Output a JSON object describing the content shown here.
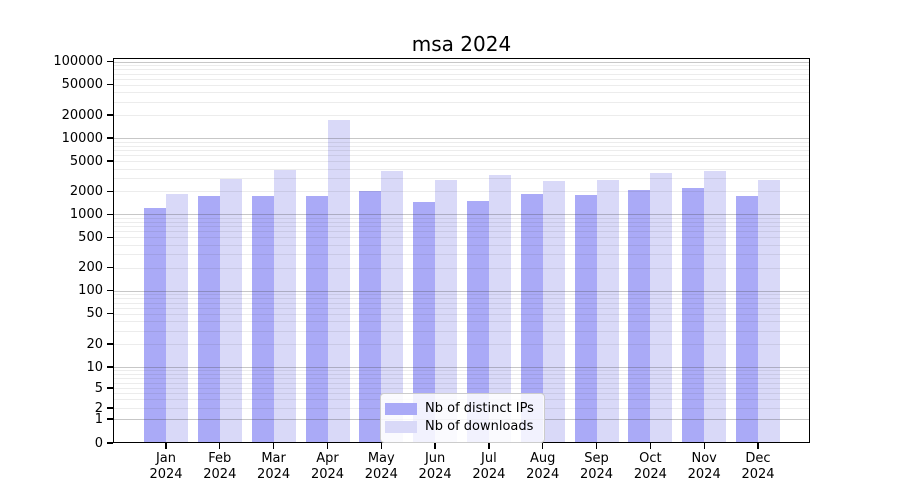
{
  "chart_data": {
    "type": "bar",
    "title": "msa 2024",
    "categories": [
      "Jan",
      "Feb",
      "Mar",
      "Apr",
      "May",
      "Jun",
      "Jul",
      "Aug",
      "Sep",
      "Oct",
      "Nov",
      "Dec"
    ],
    "year_label": "2024",
    "series": [
      {
        "name": "Nb of distinct IPs",
        "color": "#aaaaf7",
        "values": [
          1230,
          1770,
          1720,
          1770,
          2060,
          1440,
          1520,
          1850,
          1820,
          2120,
          2250,
          1720
        ]
      },
      {
        "name": "Nb of downloads",
        "color": "#d9d9f8",
        "values": [
          1830,
          2910,
          3880,
          17450,
          3760,
          2870,
          3330,
          2740,
          2870,
          3540,
          3760,
          2870
        ]
      }
    ],
    "yscale": "symlog",
    "yticks": [
      0,
      1,
      2,
      5,
      10,
      20,
      50,
      100,
      200,
      500,
      1000,
      2000,
      5000,
      10000,
      20000,
      50000,
      100000
    ],
    "ylim": [
      0,
      100000
    ],
    "xlabel": "",
    "ylabel": "",
    "grid": "on",
    "legend_position": "lower-center",
    "colors": {
      "distinct_ips": "#aaaaf7",
      "downloads": "#d9d9f8",
      "grid_minor": "#ebebeb",
      "grid_major": "#c4c4c4",
      "spine": "#000000",
      "background": "#ffffff"
    }
  }
}
